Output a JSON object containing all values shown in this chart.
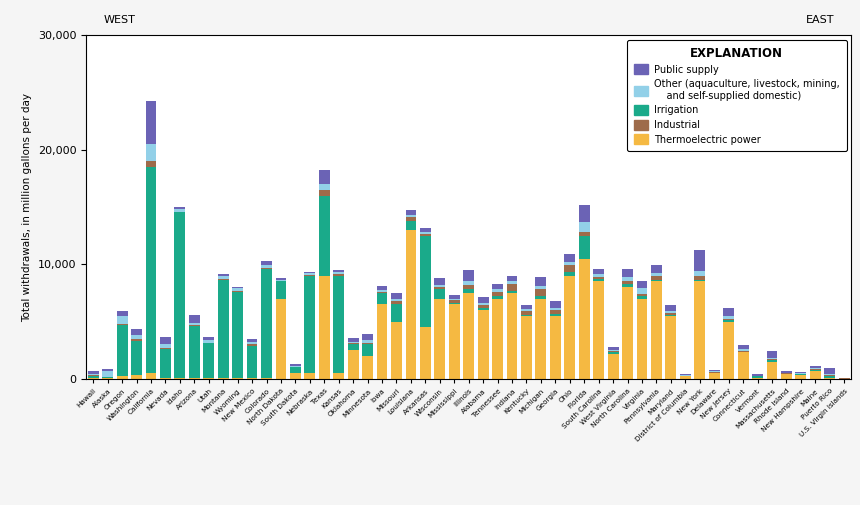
{
  "states": [
    "Hawaii",
    "Alaska",
    "Oregon",
    "Washington",
    "California",
    "Nevada",
    "Idaho",
    "Arizona",
    "Utah",
    "Montana",
    "Wyoming",
    "New Mexico",
    "Colorado",
    "North Dakota",
    "South Dakota",
    "Nebraska",
    "Texas",
    "Kansas",
    "Oklahoma",
    "Minnesota",
    "Iowa",
    "Missouri",
    "Louisiana",
    "Arkansas",
    "Wisconsin",
    "Mississippi",
    "Illinois",
    "Alabama",
    "Tennessee",
    "Indiana",
    "Kentucky",
    "Michigan",
    "Georgia",
    "Ohio",
    "Florida",
    "South Carolina",
    "West Virginia",
    "North Carolina",
    "Virginia",
    "Pennsylvania",
    "Maryland",
    "District of Columbia",
    "New York",
    "Delaware",
    "New Jersey",
    "Connecticut",
    "Vermont",
    "Massachusetts",
    "Rhode Island",
    "New Hampshire",
    "Maine",
    "Puerto Rico",
    "U.S. Virgin Islands"
  ],
  "public_supply": [
    300,
    200,
    400,
    500,
    3800,
    600,
    200,
    700,
    300,
    150,
    100,
    300,
    350,
    150,
    100,
    150,
    1200,
    200,
    300,
    500,
    350,
    500,
    400,
    300,
    600,
    350,
    1000,
    500,
    500,
    450,
    350,
    800,
    600,
    700,
    1500,
    400,
    200,
    700,
    600,
    700,
    500,
    100,
    1800,
    100,
    700,
    350,
    100,
    600,
    150,
    100,
    200,
    500,
    30
  ],
  "other": [
    100,
    500,
    700,
    350,
    1500,
    350,
    200,
    200,
    200,
    300,
    200,
    200,
    200,
    100,
    100,
    100,
    500,
    150,
    150,
    300,
    150,
    200,
    200,
    200,
    200,
    150,
    300,
    200,
    200,
    200,
    150,
    300,
    200,
    300,
    900,
    300,
    100,
    400,
    500,
    300,
    200,
    50,
    500,
    100,
    200,
    150,
    50,
    150,
    50,
    50,
    100,
    150,
    10
  ],
  "irrigation": [
    150,
    100,
    4500,
    3000,
    18000,
    2500,
    14500,
    4500,
    3000,
    8500,
    7500,
    2800,
    9500,
    1500,
    500,
    8500,
    7000,
    8500,
    500,
    1000,
    1000,
    1500,
    800,
    8000,
    800,
    150,
    300,
    150,
    200,
    200,
    100,
    200,
    200,
    300,
    2000,
    200,
    100,
    300,
    200,
    150,
    100,
    30,
    150,
    30,
    100,
    50,
    100,
    100,
    30,
    50,
    100,
    150,
    10
  ],
  "industrial": [
    50,
    30,
    100,
    200,
    500,
    100,
    50,
    100,
    50,
    100,
    100,
    100,
    100,
    50,
    50,
    100,
    500,
    150,
    100,
    100,
    100,
    300,
    300,
    150,
    200,
    200,
    400,
    300,
    400,
    600,
    300,
    600,
    300,
    600,
    300,
    150,
    150,
    200,
    200,
    300,
    150,
    30,
    300,
    30,
    150,
    100,
    30,
    100,
    30,
    30,
    50,
    50,
    5
  ],
  "thermoelectric": [
    100,
    30,
    200,
    300,
    500,
    100,
    50,
    100,
    100,
    100,
    100,
    100,
    100,
    7000,
    500,
    500,
    9000,
    500,
    2500,
    2000,
    6500,
    5000,
    13000,
    4500,
    7000,
    6500,
    7500,
    6000,
    7000,
    7500,
    5500,
    7000,
    5500,
    9000,
    10500,
    8500,
    2200,
    8000,
    7000,
    8500,
    5500,
    200,
    8500,
    500,
    5000,
    2300,
    100,
    1500,
    400,
    350,
    700,
    100,
    10
  ],
  "colors": {
    "public_supply": "#6b63b5",
    "other": "#92d0e8",
    "irrigation": "#1aaa8a",
    "industrial": "#9e6b4a",
    "thermoelectric": "#f5b942"
  },
  "ylabel": "Total withdrawals, in million gallons per day",
  "ylim": [
    0,
    30000
  ],
  "yticks": [
    0,
    10000,
    20000,
    30000
  ],
  "background_color": "#f5f5f5",
  "plot_bg": "#ffffff",
  "legend_title": "EXPLANATION",
  "legend_labels": [
    "Public supply",
    "Other (aquaculture, livestock, mining,\n    and self-supplied domestic)",
    "Irrigation",
    "Industrial",
    "Thermoelectric power"
  ]
}
